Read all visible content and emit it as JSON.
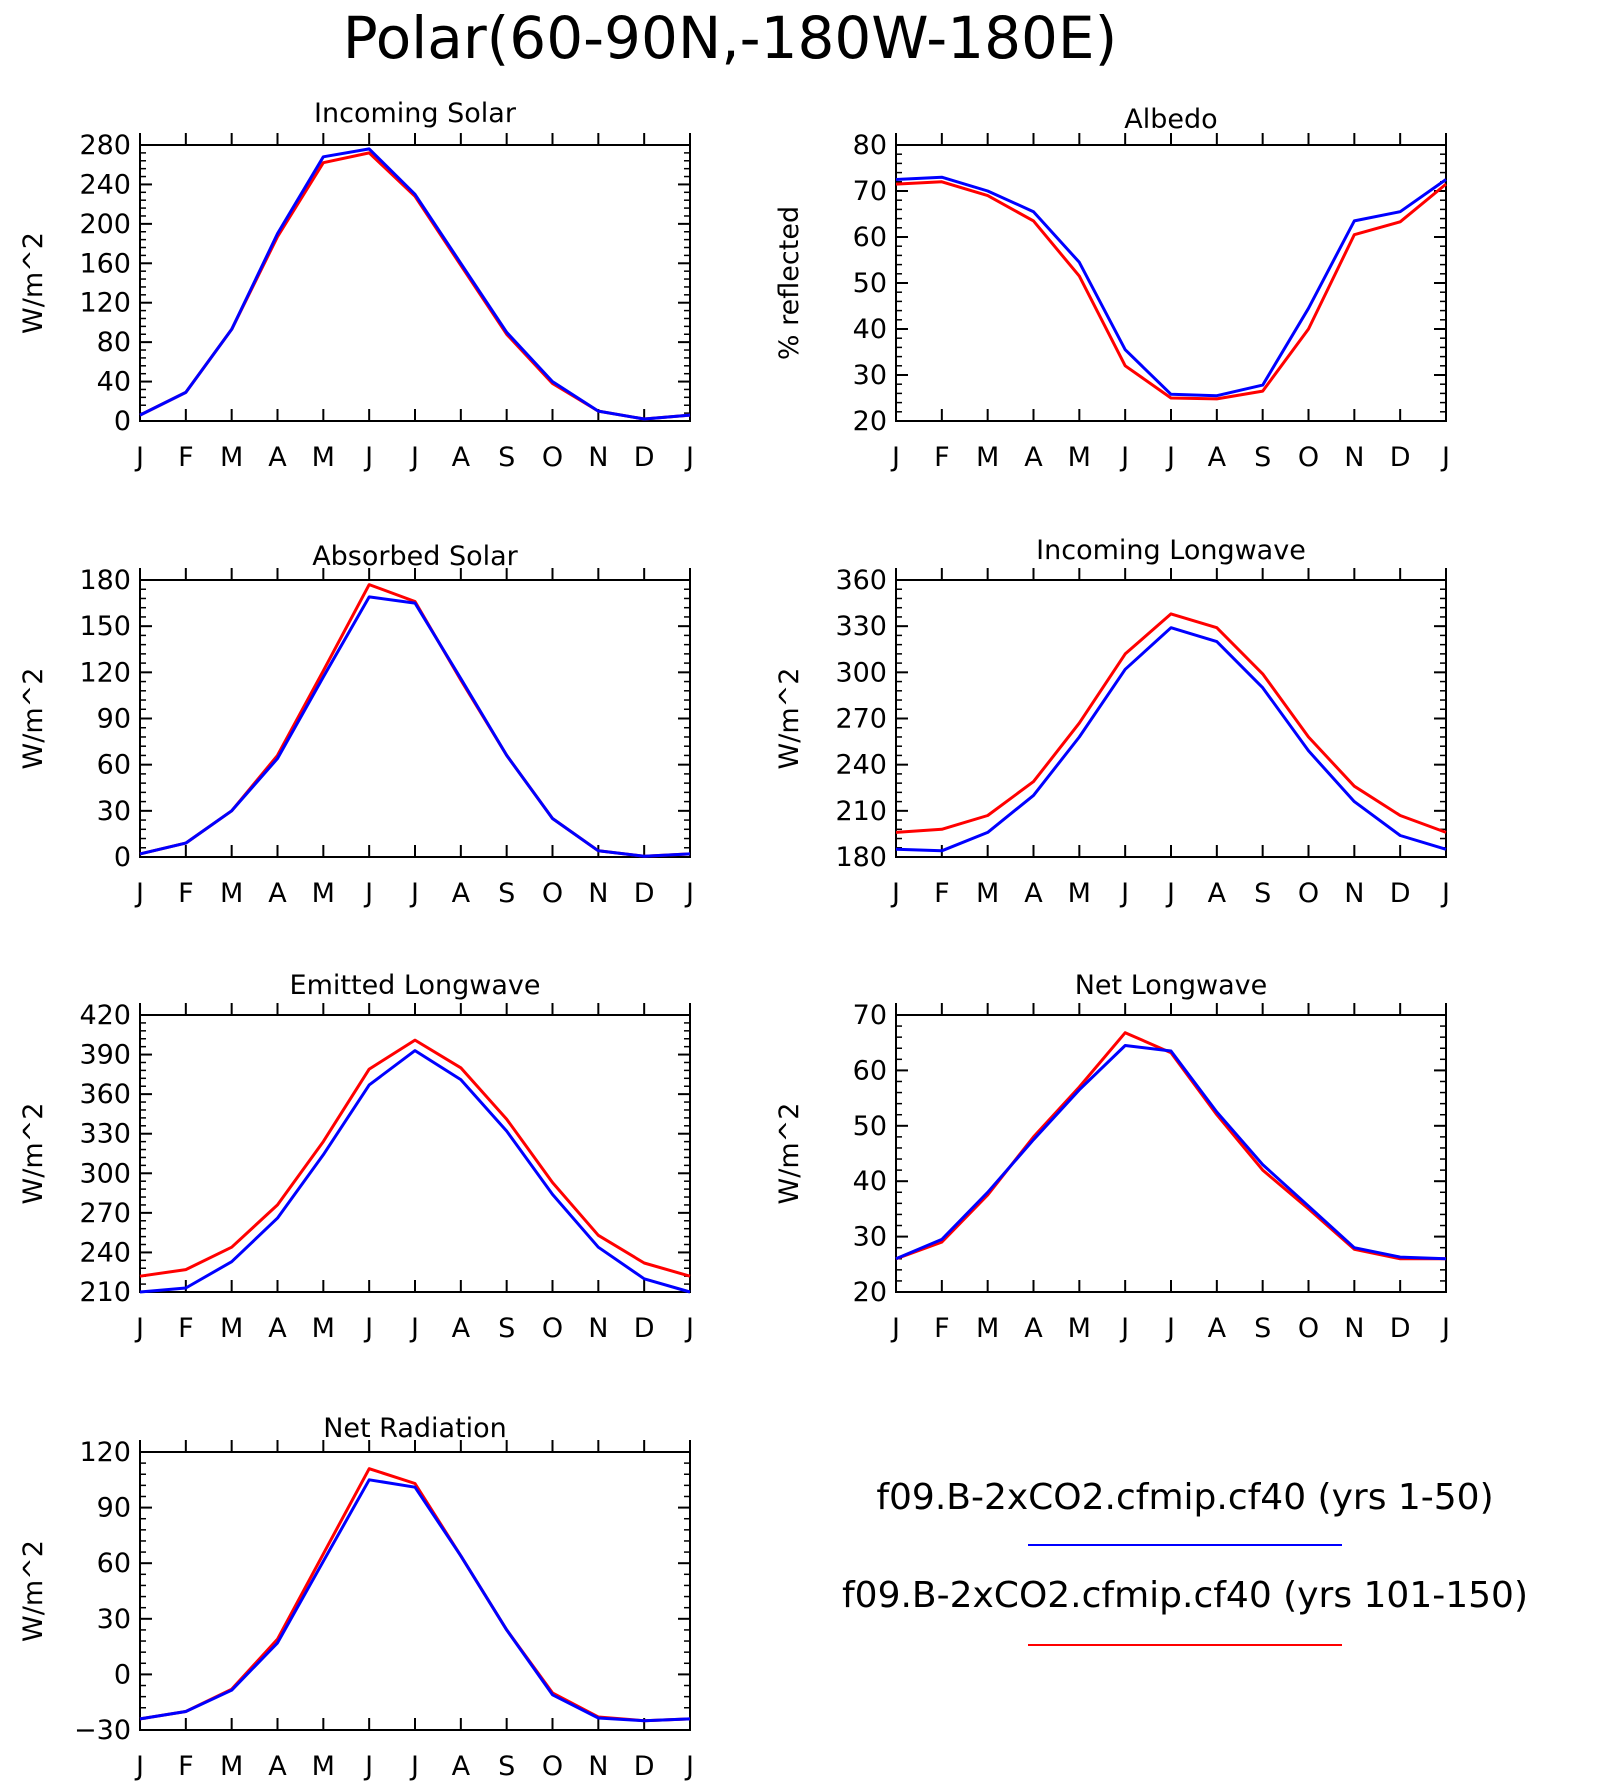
{
  "figure": {
    "title": "Polar(60-90N,-180W-180E)"
  },
  "colors": {
    "series_a": "#0000ff",
    "series_b": "#ff0000",
    "axes": "#000000",
    "background": "#ffffff"
  },
  "legend": {
    "placement": "bottom-right",
    "entries": [
      {
        "label": "f09.B-2xCO2.cfmip.cf40 (yrs 1-50)",
        "color": "#0000ff"
      },
      {
        "label": "f09.B-2xCO2.cfmip.cf40 (yrs 101-150)",
        "color": "#ff0000"
      }
    ]
  },
  "chart_data": [
    {
      "type": "line",
      "title": "Incoming Solar",
      "ylabel": "W/m^2",
      "categories": [
        "J",
        "F",
        "M",
        "A",
        "M",
        "J",
        "J",
        "A",
        "S",
        "O",
        "N",
        "D",
        "J"
      ],
      "ylim": [
        0,
        280
      ],
      "yticks": [
        0,
        40,
        80,
        120,
        160,
        200,
        240,
        280
      ],
      "grid": false,
      "series": [
        {
          "name": "f09.B-2xCO2.cfmip.cf40 (yrs 1-50)",
          "color": "#0000ff",
          "values": [
            6,
            29,
            93,
            190,
            268,
            276,
            230,
            160,
            90,
            40,
            10,
            2,
            6
          ]
        },
        {
          "name": "f09.B-2xCO2.cfmip.cf40 (yrs 101-150)",
          "color": "#ff0000",
          "values": [
            6,
            29,
            93,
            187,
            262,
            272,
            228,
            158,
            88,
            38,
            10,
            2,
            6
          ]
        }
      ]
    },
    {
      "type": "line",
      "title": "Albedo",
      "ylabel": "% reflected",
      "categories": [
        "J",
        "F",
        "M",
        "A",
        "M",
        "J",
        "J",
        "A",
        "S",
        "O",
        "N",
        "D",
        "J"
      ],
      "ylim": [
        20,
        80
      ],
      "yticks": [
        20,
        30,
        40,
        50,
        60,
        70,
        80
      ],
      "grid": false,
      "series": [
        {
          "name": "f09.B-2xCO2.cfmip.cf40 (yrs 1-50)",
          "color": "#0000ff",
          "values": [
            72.5,
            73,
            70,
            65.5,
            54.5,
            35.5,
            25.8,
            25.5,
            27.8,
            44.5,
            63.5,
            65.5,
            72.5
          ]
        },
        {
          "name": "f09.B-2xCO2.cfmip.cf40 (yrs 101-150)",
          "color": "#ff0000",
          "values": [
            71.5,
            72,
            69,
            63.5,
            51.5,
            32,
            25,
            24.8,
            26.5,
            40,
            60.5,
            63.3,
            71.5
          ]
        }
      ]
    },
    {
      "type": "line",
      "title": "Absorbed Solar",
      "ylabel": "W/m^2",
      "categories": [
        "J",
        "F",
        "M",
        "A",
        "M",
        "J",
        "J",
        "A",
        "S",
        "O",
        "N",
        "D",
        "J"
      ],
      "ylim": [
        0,
        180
      ],
      "yticks": [
        0,
        30,
        60,
        90,
        120,
        150,
        180
      ],
      "grid": false,
      "series": [
        {
          "name": "f09.B-2xCO2.cfmip.cf40 (yrs 1-50)",
          "color": "#0000ff",
          "values": [
            2,
            9,
            30,
            64,
            117,
            169,
            165,
            116,
            66,
            25,
            4,
            0.5,
            2
          ]
        },
        {
          "name": "f09.B-2xCO2.cfmip.cf40 (yrs 101-150)",
          "color": "#ff0000",
          "values": [
            2,
            9,
            30,
            66,
            121,
            177,
            166,
            115,
            66,
            25,
            4,
            0.5,
            2
          ]
        }
      ]
    },
    {
      "type": "line",
      "title": "Incoming Longwave",
      "ylabel": "W/m^2",
      "categories": [
        "J",
        "F",
        "M",
        "A",
        "M",
        "J",
        "J",
        "A",
        "S",
        "O",
        "N",
        "D",
        "J"
      ],
      "ylim": [
        180,
        360
      ],
      "yticks": [
        180,
        210,
        240,
        270,
        300,
        330,
        360
      ],
      "grid": false,
      "series": [
        {
          "name": "f09.B-2xCO2.cfmip.cf40 (yrs 1-50)",
          "color": "#0000ff",
          "values": [
            185,
            184,
            196,
            220,
            258,
            302,
            329,
            320,
            290,
            249,
            216,
            194,
            185
          ]
        },
        {
          "name": "f09.B-2xCO2.cfmip.cf40 (yrs 101-150)",
          "color": "#ff0000",
          "values": [
            196,
            198,
            207,
            229,
            267,
            312,
            338,
            329,
            299,
            258,
            226,
            207,
            196
          ]
        }
      ]
    },
    {
      "type": "line",
      "title": "Emitted Longwave",
      "ylabel": "W/m^2",
      "categories": [
        "J",
        "F",
        "M",
        "A",
        "M",
        "J",
        "J",
        "A",
        "S",
        "O",
        "N",
        "D",
        "J"
      ],
      "ylim": [
        210,
        420
      ],
      "yticks": [
        210,
        240,
        270,
        300,
        330,
        360,
        390,
        420
      ],
      "grid": false,
      "series": [
        {
          "name": "f09.B-2xCO2.cfmip.cf40 (yrs 1-50)",
          "color": "#0000ff",
          "values": [
            210,
            213,
            233,
            266,
            314,
            367,
            393,
            371,
            332,
            284,
            244,
            220,
            210
          ]
        },
        {
          "name": "f09.B-2xCO2.cfmip.cf40 (yrs 101-150)",
          "color": "#ff0000",
          "values": [
            222,
            227,
            244,
            276,
            324,
            379,
            401,
            380,
            341,
            293,
            253,
            232,
            222
          ]
        }
      ]
    },
    {
      "type": "line",
      "title": "Net Longwave",
      "ylabel": "W/m^2",
      "categories": [
        "J",
        "F",
        "M",
        "A",
        "M",
        "J",
        "J",
        "A",
        "S",
        "O",
        "N",
        "D",
        "J"
      ],
      "ylim": [
        20,
        70
      ],
      "yticks": [
        20,
        30,
        40,
        50,
        60,
        70
      ],
      "grid": false,
      "series": [
        {
          "name": "f09.B-2xCO2.cfmip.cf40 (yrs 1-50)",
          "color": "#0000ff",
          "values": [
            26,
            29.5,
            38,
            47.5,
            56.5,
            64.5,
            63.5,
            52.5,
            43,
            35.5,
            28,
            26.3,
            26
          ]
        },
        {
          "name": "f09.B-2xCO2.cfmip.cf40 (yrs 101-150)",
          "color": "#ff0000",
          "values": [
            26,
            29,
            37.5,
            48,
            57,
            66.8,
            63.2,
            52,
            42,
            35,
            27.7,
            26,
            26
          ]
        }
      ]
    },
    {
      "type": "line",
      "title": "Net Radiation",
      "ylabel": "W/m^2",
      "categories": [
        "J",
        "F",
        "M",
        "A",
        "M",
        "J",
        "J",
        "A",
        "S",
        "O",
        "N",
        "D",
        "J"
      ],
      "ylim": [
        -30,
        120
      ],
      "yticks": [
        -30,
        0,
        30,
        60,
        90,
        120
      ],
      "grid": false,
      "series": [
        {
          "name": "f09.B-2xCO2.cfmip.cf40 (yrs 1-50)",
          "color": "#0000ff",
          "values": [
            -24,
            -20,
            -8.5,
            17,
            61,
            105,
            101,
            64,
            24,
            -11,
            -23.5,
            -25,
            -24
          ]
        },
        {
          "name": "f09.B-2xCO2.cfmip.cf40 (yrs 101-150)",
          "color": "#ff0000",
          "values": [
            -24,
            -20,
            -8,
            19,
            65,
            111,
            103,
            64,
            24,
            -10,
            -23,
            -25,
            -24
          ]
        }
      ]
    }
  ]
}
